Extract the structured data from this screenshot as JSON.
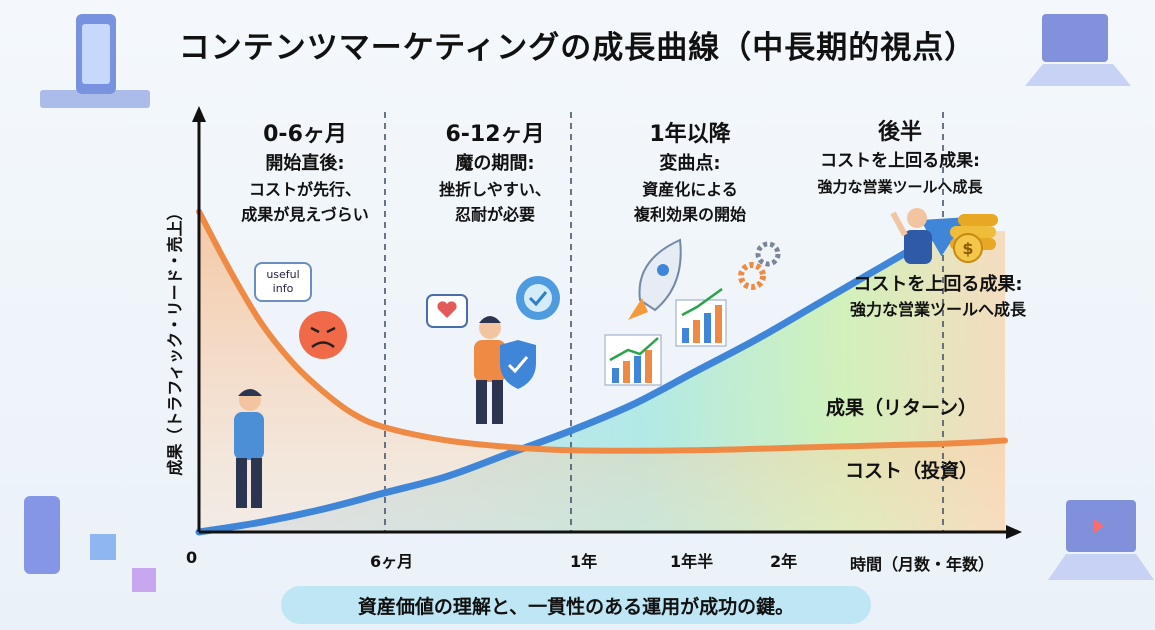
{
  "title": "コンテンツマーケティングの成長曲線（中長期的視点）",
  "chart_data": {
    "type": "line",
    "title": "コンテンツマーケティングの成長曲線（中長期的視点）",
    "xlabel": "時間（月数・年数）",
    "ylabel": "成果（トラフィック・リード・売上）",
    "x_ticks": [
      {
        "label": "0",
        "months": 0
      },
      {
        "label": "6ヶ月",
        "months": 6
      },
      {
        "label": "1年",
        "months": 12
      },
      {
        "label": "1年半",
        "months": 18
      },
      {
        "label": "2年",
        "months": 24
      }
    ],
    "xlim": [
      0,
      26
    ],
    "ylim": [
      0,
      100
    ],
    "series": [
      {
        "name": "成果（リターン）",
        "color": "#3f86d9",
        "x": [
          0,
          2,
          4,
          6,
          8,
          10,
          12,
          14,
          16,
          18,
          20,
          22,
          24
        ],
        "y": [
          0,
          3,
          7,
          12,
          17,
          24,
          31,
          39,
          49,
          59,
          70,
          81,
          92
        ]
      },
      {
        "name": "コスト（投資）",
        "color": "#ef8a45",
        "x": [
          0,
          1,
          2,
          3,
          4,
          5,
          6,
          8,
          10,
          12,
          16,
          20,
          24,
          26
        ],
        "y": [
          98,
          80,
          64,
          52,
          43,
          36,
          32,
          28,
          26,
          25,
          25,
          26,
          27,
          28
        ]
      }
    ]
  },
  "phases": [
    {
      "heading": "0-6ヶ月",
      "sub": "開始直後:",
      "desc1": "コストが先行、",
      "desc2": "成果が見えづらい"
    },
    {
      "heading": "6-12ヶ月",
      "sub": "魔の期間:",
      "desc1": "挫折しやすい、",
      "desc2": "忍耐が必要"
    },
    {
      "heading": "1年以降",
      "sub": "変曲点:",
      "desc1": "資産化による",
      "desc2": "複利効果の開始"
    },
    {
      "heading": "後半",
      "sub": "コストを上回る成果:",
      "desc1": "強力な営業ツールへ成長"
    }
  ],
  "annotation": {
    "line1": "コストを上回る成果:",
    "line2": "強力な営業ツールへ成長"
  },
  "bubble_text": "useful info",
  "footer": "資産価値の理解と、一貫性のある運用が成功の鍵。",
  "colors": {
    "return": "#3f86d9",
    "cost": "#ef8a45"
  }
}
